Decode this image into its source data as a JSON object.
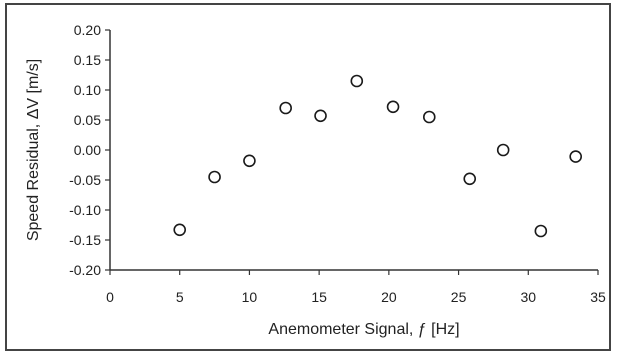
{
  "chart_data": {
    "type": "scatter",
    "title": "",
    "xlabel": "Anemometer Signal, ƒ [Hz]",
    "ylabel": "Speed Residual, ΔV [m/s]",
    "xlim": [
      0,
      35
    ],
    "ylim": [
      -0.2,
      0.2
    ],
    "xticks": [
      "0",
      "5",
      "10",
      "15",
      "20",
      "25",
      "30",
      "35"
    ],
    "yticks": [
      "-0.20",
      "-0.15",
      "-0.10",
      "-0.05",
      "0.00",
      "0.05",
      "0.10",
      "0.15",
      "0.20"
    ],
    "grid": false,
    "legend": "none",
    "marker": "open-circle",
    "series": [
      {
        "points": [
          {
            "x": 5.0,
            "y": -0.133
          },
          {
            "x": 7.5,
            "y": -0.045
          },
          {
            "x": 10.0,
            "y": -0.018
          },
          {
            "x": 12.6,
            "y": 0.07
          },
          {
            "x": 15.1,
            "y": 0.057
          },
          {
            "x": 17.7,
            "y": 0.115
          },
          {
            "x": 20.3,
            "y": 0.072
          },
          {
            "x": 22.9,
            "y": 0.055
          },
          {
            "x": 25.8,
            "y": -0.048
          },
          {
            "x": 28.2,
            "y": 0.0
          },
          {
            "x": 30.9,
            "y": -0.135
          },
          {
            "x": 33.4,
            "y": -0.011
          }
        ]
      }
    ]
  },
  "colors": {
    "marker_stroke": "#1a1a1a",
    "axis": "#333333"
  }
}
